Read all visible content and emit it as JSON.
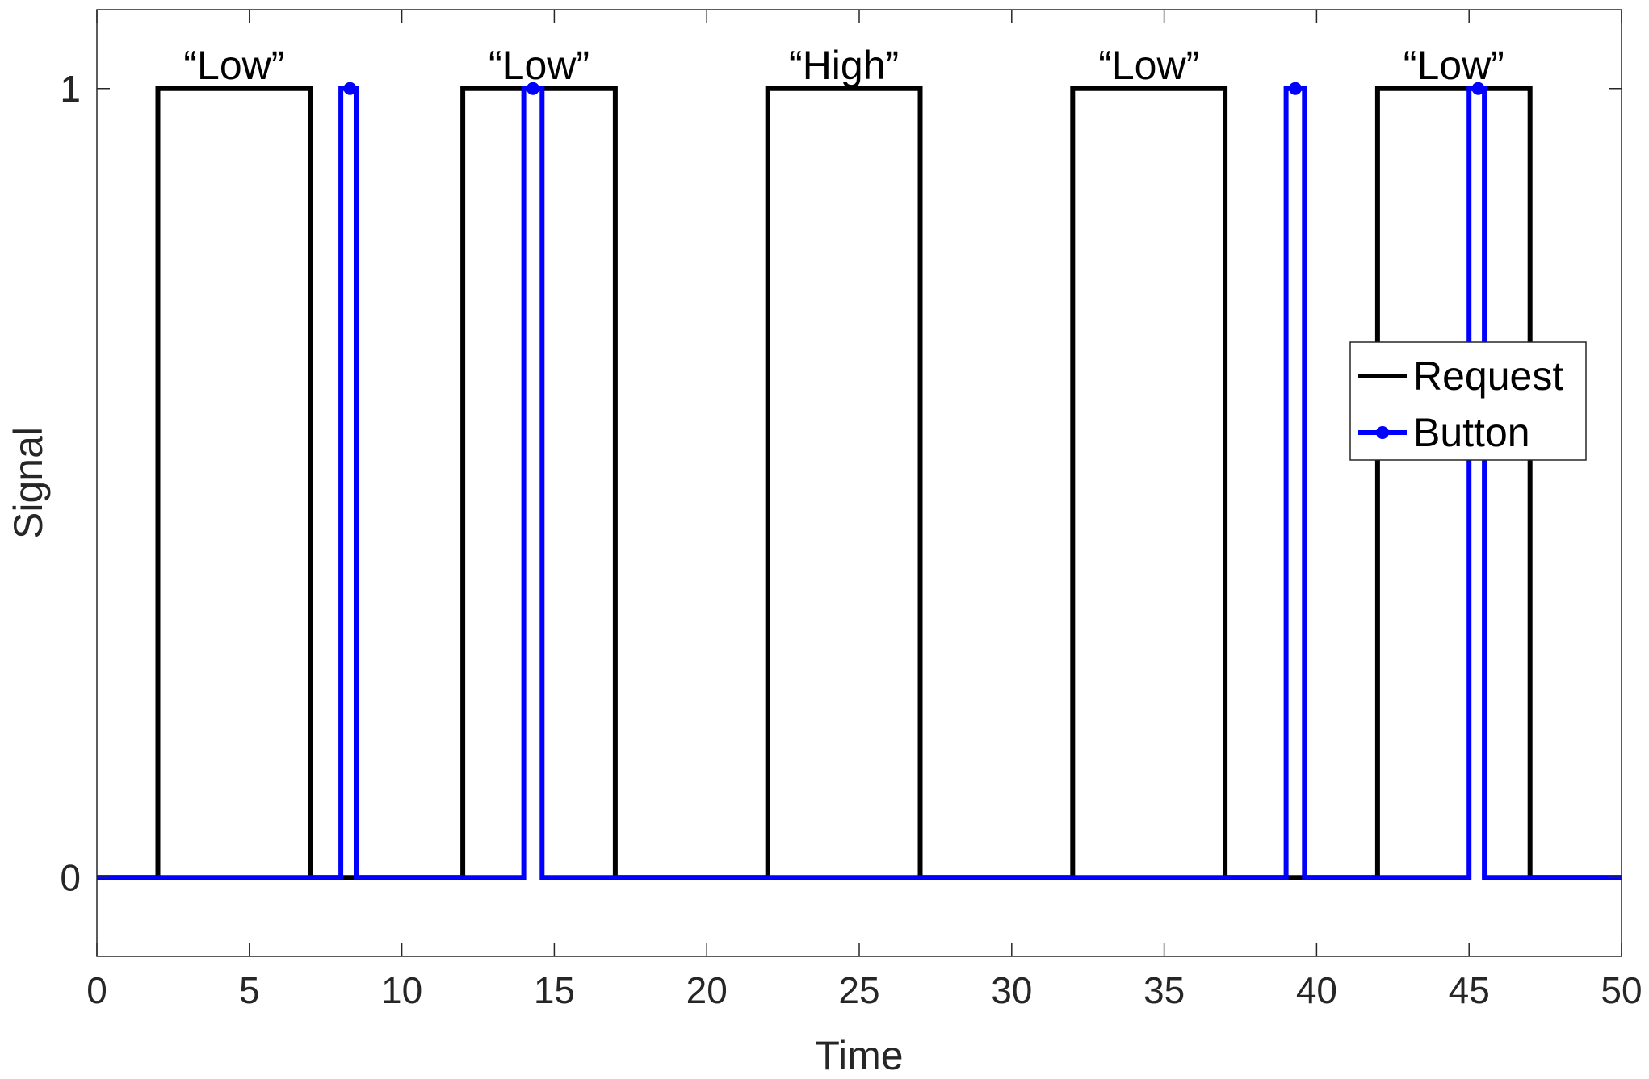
{
  "chart_data": {
    "type": "line",
    "xlabel": "Time",
    "ylabel": "Signal",
    "xlim": [
      0,
      50
    ],
    "ylim": [
      -0.1,
      1.1
    ],
    "xticks": [
      "0",
      "5",
      "10",
      "15",
      "20",
      "25",
      "30",
      "35",
      "40",
      "45",
      "50"
    ],
    "yticks": [
      "0",
      "1"
    ],
    "grid": false,
    "legend_position": "right",
    "series": [
      {
        "name": "Request",
        "color": "#000000",
        "marker": "none",
        "step": true,
        "x": [
          0,
          2,
          2,
          7,
          7,
          12,
          12,
          17,
          17,
          22,
          22,
          27,
          27,
          32,
          32,
          37,
          37,
          42,
          42,
          47,
          47,
          50
        ],
        "y": [
          0,
          0,
          1,
          1,
          0,
          0,
          1,
          1,
          0,
          0,
          1,
          1,
          0,
          0,
          1,
          1,
          0,
          0,
          1,
          1,
          0,
          0
        ]
      },
      {
        "name": "Button",
        "color": "#0000ff",
        "marker": "circle",
        "step": true,
        "x": [
          0,
          8,
          8,
          8.5,
          8.5,
          14,
          14,
          14.6,
          14.6,
          39,
          39,
          39.6,
          39.6,
          45,
          45,
          45.5,
          45.5,
          50
        ],
        "y": [
          0,
          0,
          1,
          1,
          0,
          0,
          1,
          1,
          0,
          0,
          1,
          1,
          0,
          0,
          1,
          1,
          0,
          0
        ],
        "marker_points": [
          {
            "x": 8.3,
            "y": 1
          },
          {
            "x": 14.3,
            "y": 1
          },
          {
            "x": 39.3,
            "y": 1
          },
          {
            "x": 45.3,
            "y": 1
          }
        ]
      }
    ],
    "annotations": [
      {
        "text": "“Low”",
        "x": 4.5,
        "y": 1
      },
      {
        "text": "“Low”",
        "x": 14.5,
        "y": 1
      },
      {
        "text": "“High”",
        "x": 24.5,
        "y": 1
      },
      {
        "text": "“Low”",
        "x": 34.5,
        "y": 1
      },
      {
        "text": "“Low”",
        "x": 44.5,
        "y": 1
      }
    ]
  }
}
